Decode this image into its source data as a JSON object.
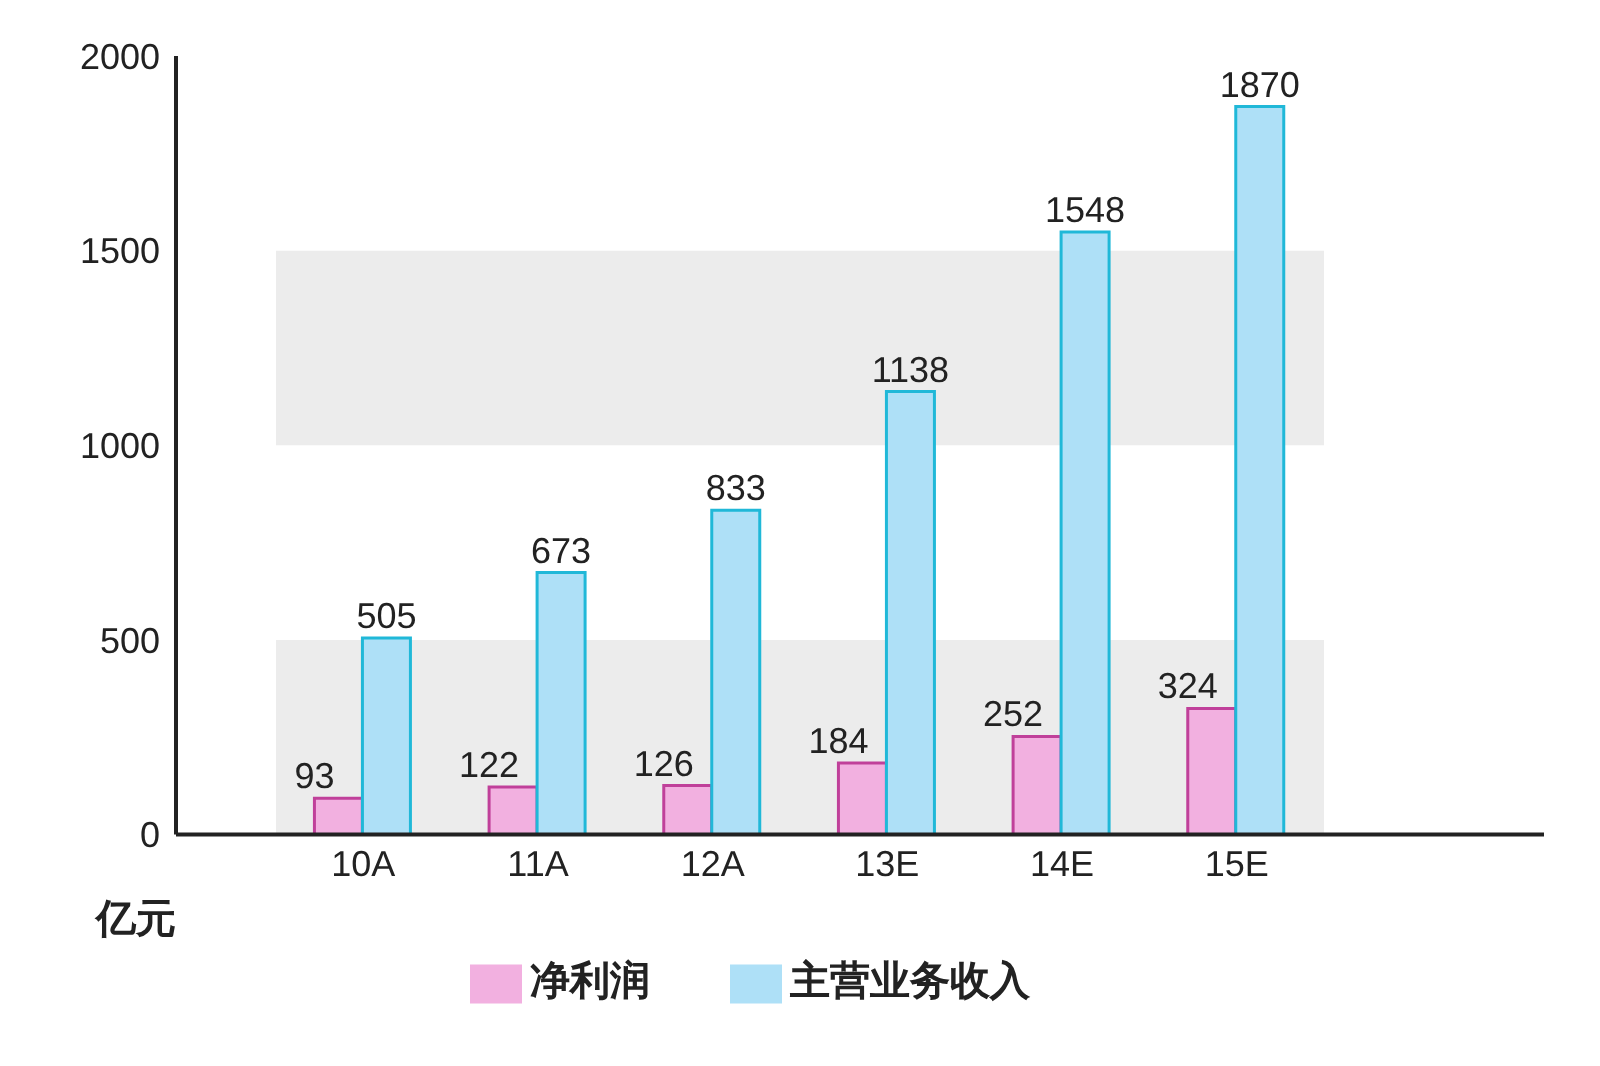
{
  "chart_data": {
    "type": "bar",
    "ylabel": "亿元",
    "categories": [
      "10A",
      "11A",
      "12A",
      "13E",
      "14E",
      "15E"
    ],
    "series": [
      {
        "name": "净利润",
        "color": "#f2b0e0",
        "values": [
          93,
          122,
          126,
          184,
          252,
          324
        ]
      },
      {
        "name": "主营业务收入",
        "color": "#aee0f7",
        "values": [
          505,
          673,
          833,
          1138,
          1548,
          1870
        ]
      }
    ],
    "ylim": [
      0,
      2000
    ],
    "yticks": [
      0,
      500,
      1000,
      1500,
      2000
    ],
    "grid": false,
    "legend": "bottom",
    "data_labels": true,
    "bands": [
      {
        "axis": "y",
        "from": 0,
        "to": 500,
        "color": "#ececec"
      },
      {
        "axis": "y",
        "from": 1000,
        "to": 1500,
        "color": "#ececec"
      }
    ]
  }
}
